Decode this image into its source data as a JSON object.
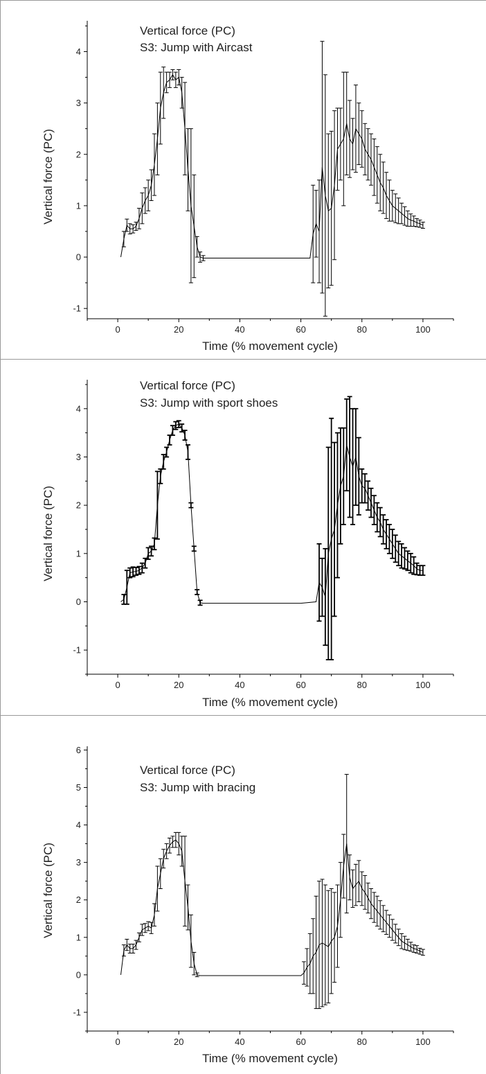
{
  "figure": {
    "panels": [
      {
        "annotation_line1": "Vertical force (PC)",
        "annotation_line2": "S3: Jump with Aircast"
      },
      {
        "annotation_line1": "Vertical force (PC)",
        "annotation_line2": "S3: Jump with sport shoes"
      },
      {
        "annotation_line1": "Vertical force (PC)",
        "annotation_line2": "S3: Jump with bracing"
      }
    ]
  },
  "chart_data": [
    {
      "type": "line",
      "title": "Vertical force (PC)",
      "subtitle": "S3: Jump with Aircast",
      "xlabel": "Time (% movement cycle)",
      "ylabel": "Vertical force (PC)",
      "xlim": [
        -10,
        110
      ],
      "ylim": [
        -1.2,
        4.6
      ],
      "xticks": [
        0,
        20,
        40,
        60,
        80,
        100
      ],
      "yticks": [
        -1,
        0,
        1,
        2,
        3,
        4
      ],
      "grid": false,
      "legend": "none",
      "error_bars": true,
      "x": [
        1,
        2,
        3,
        4,
        5,
        6,
        7,
        8,
        9,
        10,
        11,
        12,
        13,
        14,
        15,
        16,
        17,
        18,
        19,
        20,
        21,
        22,
        23,
        24,
        25,
        26,
        27,
        28,
        29,
        30,
        35,
        40,
        45,
        50,
        55,
        60,
        63,
        64,
        65,
        66,
        67,
        68,
        69,
        70,
        71,
        72,
        73,
        74,
        75,
        76,
        77,
        78,
        79,
        80,
        81,
        82,
        83,
        84,
        85,
        86,
        87,
        88,
        89,
        90,
        91,
        92,
        93,
        94,
        95,
        96,
        97,
        98,
        99,
        100
      ],
      "series": [
        {
          "values": [
            0.0,
            0.35,
            0.62,
            0.55,
            0.55,
            0.6,
            0.75,
            0.95,
            1.1,
            1.2,
            1.4,
            1.8,
            2.3,
            2.9,
            3.2,
            3.4,
            3.45,
            3.55,
            3.45,
            3.5,
            3.2,
            2.5,
            1.7,
            1.0,
            0.6,
            0.2,
            0.0,
            -0.02,
            -0.02,
            -0.02,
            -0.02,
            -0.02,
            -0.02,
            -0.02,
            -0.02,
            -0.02,
            -0.02,
            0.45,
            0.65,
            0.5,
            1.75,
            1.2,
            0.9,
            0.95,
            1.4,
            2.1,
            2.2,
            2.3,
            2.6,
            2.3,
            2.2,
            2.5,
            2.4,
            2.3,
            2.1,
            2.0,
            1.9,
            1.75,
            1.6,
            1.45,
            1.35,
            1.2,
            1.1,
            1.0,
            0.95,
            0.9,
            0.85,
            0.8,
            0.75,
            0.72,
            0.7,
            0.67,
            0.65,
            0.62
          ],
          "errors": [
            0.03,
            0.15,
            0.12,
            0.1,
            0.08,
            0.08,
            0.2,
            0.3,
            0.25,
            0.3,
            0.3,
            0.6,
            0.7,
            0.7,
            0.5,
            0.2,
            0.15,
            0.1,
            0.15,
            0.15,
            0.3,
            0.9,
            0.8,
            1.5,
            1.0,
            0.2,
            0.1,
            0.05,
            0.02,
            0.02,
            0.02,
            0.02,
            0.02,
            0.02,
            0.02,
            0.02,
            0.02,
            0.95,
            0.65,
            1.0,
            2.45,
            2.35,
            1.5,
            1.5,
            1.45,
            0.8,
            0.7,
            1.3,
            1.0,
            0.75,
            0.5,
            0.85,
            0.6,
            0.55,
            0.5,
            0.5,
            0.5,
            0.55,
            0.55,
            0.55,
            0.5,
            0.45,
            0.4,
            0.3,
            0.28,
            0.25,
            0.2,
            0.18,
            0.15,
            0.12,
            0.1,
            0.08,
            0.07,
            0.06
          ]
        }
      ]
    },
    {
      "type": "line",
      "title": "Vertical force (PC)",
      "subtitle": "S3: Jump with sport shoes",
      "xlabel": "Time (% movement cycle)",
      "ylabel": "Vertical force (PC)",
      "xlim": [
        -10,
        110
      ],
      "ylim": [
        -1.5,
        4.6
      ],
      "xticks": [
        0,
        20,
        40,
        60,
        80,
        100
      ],
      "yticks": [
        -1,
        0,
        1,
        2,
        3,
        4
      ],
      "grid": false,
      "legend": "none",
      "error_bars": true,
      "x": [
        1,
        2,
        3,
        4,
        5,
        6,
        7,
        8,
        9,
        10,
        11,
        12,
        13,
        14,
        15,
        16,
        17,
        18,
        19,
        20,
        21,
        22,
        23,
        24,
        25,
        26,
        27,
        28,
        29,
        30,
        35,
        40,
        45,
        50,
        55,
        60,
        65,
        66,
        67,
        68,
        69,
        70,
        71,
        72,
        73,
        74,
        75,
        76,
        77,
        78,
        79,
        80,
        81,
        82,
        83,
        84,
        85,
        86,
        87,
        88,
        89,
        90,
        91,
        92,
        93,
        94,
        95,
        96,
        97,
        98,
        99,
        100
      ],
      "series": [
        {
          "values": [
            0.0,
            0.05,
            0.3,
            0.6,
            0.62,
            0.63,
            0.65,
            0.7,
            0.8,
            1.0,
            1.05,
            1.2,
            2.0,
            2.6,
            2.9,
            3.1,
            3.35,
            3.55,
            3.65,
            3.68,
            3.6,
            3.45,
            3.1,
            2.0,
            1.1,
            0.2,
            -0.02,
            -0.03,
            -0.03,
            -0.03,
            -0.03,
            -0.03,
            -0.03,
            -0.03,
            -0.03,
            -0.03,
            0.0,
            0.4,
            0.3,
            0.1,
            1.0,
            1.3,
            1.5,
            2.0,
            2.4,
            2.6,
            3.25,
            3.0,
            2.8,
            3.0,
            2.6,
            2.4,
            2.35,
            2.2,
            2.05,
            1.9,
            1.75,
            1.65,
            1.5,
            1.4,
            1.3,
            1.2,
            1.1,
            1.0,
            0.95,
            0.9,
            0.85,
            0.8,
            0.75,
            0.68,
            0.65,
            0.65
          ],
          "errors": [
            0.02,
            0.1,
            0.35,
            0.1,
            0.1,
            0.08,
            0.08,
            0.1,
            0.1,
            0.12,
            0.1,
            0.12,
            0.7,
            0.15,
            0.15,
            0.1,
            0.1,
            0.1,
            0.08,
            0.07,
            0.08,
            0.1,
            0.15,
            0.05,
            0.05,
            0.05,
            0.05,
            0.03,
            0.02,
            0.02,
            0.02,
            0.02,
            0.02,
            0.02,
            0.02,
            0.02,
            0.02,
            0.8,
            0.6,
            1.0,
            2.2,
            2.5,
            1.8,
            1.5,
            1.2,
            1.0,
            0.95,
            1.25,
            1.2,
            1.0,
            0.8,
            0.35,
            0.3,
            0.3,
            0.3,
            0.3,
            0.3,
            0.3,
            0.3,
            0.3,
            0.3,
            0.3,
            0.28,
            0.25,
            0.25,
            0.22,
            0.2,
            0.2,
            0.18,
            0.12,
            0.1,
            0.1
          ]
        }
      ]
    },
    {
      "type": "line",
      "title": "Vertical force (PC)",
      "subtitle": "S3: Jump with bracing",
      "xlabel": "Time (% movement cycle)",
      "ylabel": "Vertical force (PC)",
      "xlim": [
        -10,
        110
      ],
      "ylim": [
        -1.5,
        6.1
      ],
      "xticks": [
        0,
        20,
        40,
        60,
        80,
        100
      ],
      "yticks": [
        -1,
        0,
        1,
        2,
        3,
        4,
        5,
        6
      ],
      "grid": false,
      "legend": "none",
      "error_bars": true,
      "x": [
        1,
        2,
        3,
        4,
        5,
        6,
        7,
        8,
        9,
        10,
        11,
        12,
        13,
        14,
        15,
        16,
        17,
        18,
        19,
        20,
        21,
        22,
        23,
        24,
        25,
        26,
        27,
        28,
        29,
        30,
        35,
        40,
        45,
        50,
        55,
        60,
        61,
        62,
        63,
        64,
        65,
        66,
        67,
        68,
        69,
        70,
        71,
        72,
        73,
        74,
        75,
        76,
        77,
        78,
        79,
        80,
        81,
        82,
        83,
        84,
        85,
        86,
        87,
        88,
        89,
        90,
        91,
        92,
        93,
        94,
        95,
        96,
        97,
        98,
        99,
        100
      ],
      "series": [
        {
          "values": [
            0.0,
            0.65,
            0.8,
            0.7,
            0.7,
            0.8,
            1.0,
            1.2,
            1.25,
            1.3,
            1.25,
            1.6,
            2.3,
            2.7,
            3.1,
            3.3,
            3.45,
            3.55,
            3.6,
            3.5,
            3.3,
            2.5,
            1.8,
            0.9,
            0.3,
            0.0,
            -0.02,
            -0.02,
            -0.02,
            -0.02,
            -0.02,
            -0.02,
            -0.02,
            -0.02,
            -0.02,
            -0.02,
            0.05,
            0.2,
            0.3,
            0.5,
            0.6,
            0.8,
            0.85,
            0.8,
            0.75,
            0.9,
            1.0,
            1.3,
            2.0,
            2.9,
            3.5,
            2.6,
            2.3,
            2.4,
            2.5,
            2.3,
            2.2,
            2.05,
            1.9,
            1.8,
            1.7,
            1.6,
            1.5,
            1.4,
            1.3,
            1.2,
            1.1,
            1.0,
            0.9,
            0.85,
            0.8,
            0.75,
            0.7,
            0.68,
            0.63,
            0.6
          ],
          "errors": [
            0.03,
            0.15,
            0.15,
            0.12,
            0.12,
            0.12,
            0.12,
            0.15,
            0.12,
            0.12,
            0.15,
            0.3,
            0.6,
            0.4,
            0.25,
            0.2,
            0.2,
            0.15,
            0.2,
            0.3,
            0.4,
            1.2,
            0.6,
            0.7,
            0.3,
            0.05,
            0.02,
            0.02,
            0.02,
            0.02,
            0.02,
            0.02,
            0.02,
            0.02,
            0.02,
            0.02,
            0.3,
            0.5,
            0.8,
            1.0,
            1.5,
            1.7,
            1.7,
            1.6,
            1.5,
            1.4,
            1.2,
            1.1,
            1.0,
            0.85,
            1.85,
            0.6,
            0.5,
            0.55,
            0.55,
            0.45,
            0.45,
            0.4,
            0.4,
            0.4,
            0.4,
            0.38,
            0.35,
            0.32,
            0.3,
            0.28,
            0.25,
            0.22,
            0.2,
            0.18,
            0.15,
            0.12,
            0.1,
            0.1,
            0.08,
            0.08
          ]
        }
      ]
    }
  ]
}
